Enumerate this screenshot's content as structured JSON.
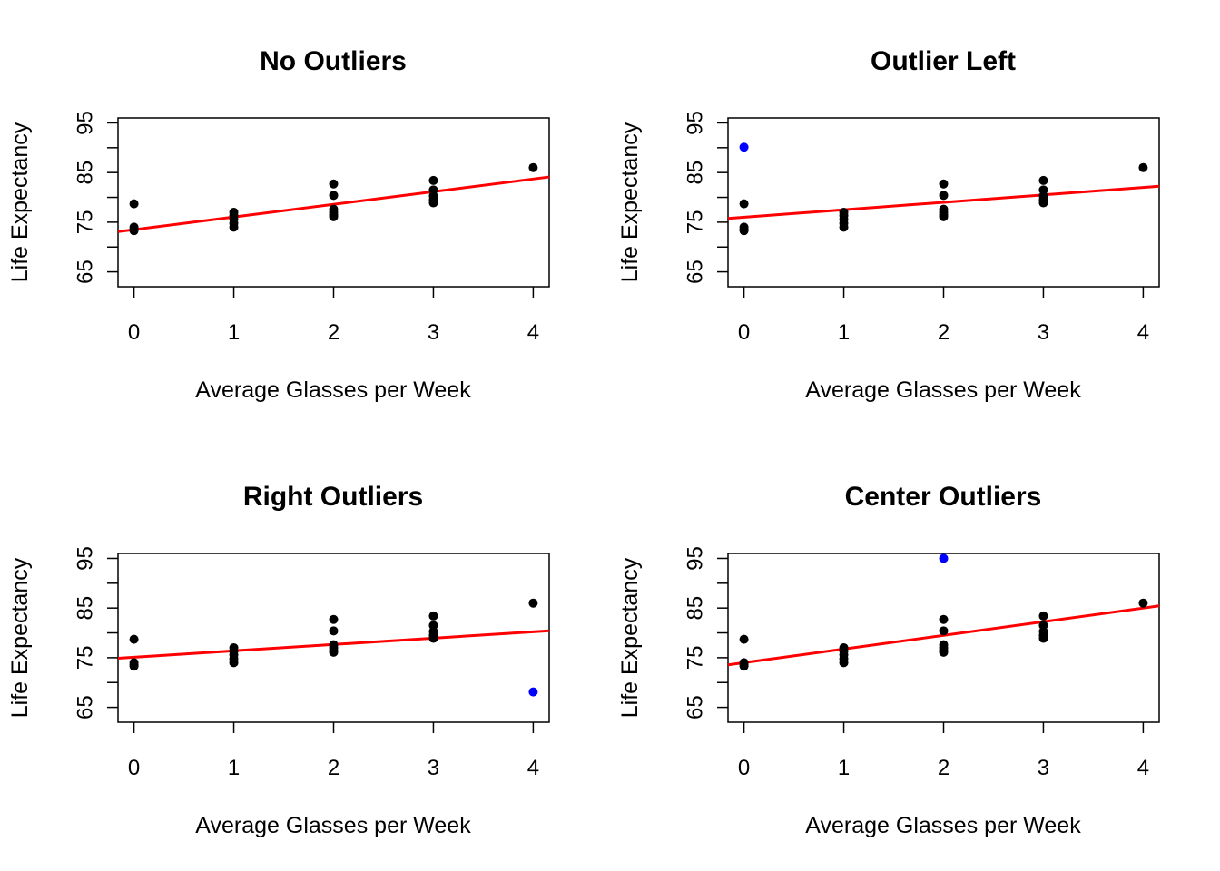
{
  "figure": {
    "background": "#ffffff",
    "line_color": "#ff0000",
    "point_color": "#000000",
    "outlier_color": "#0000ff"
  },
  "chart_data": [
    {
      "type": "scatter",
      "title": "No Outliers",
      "xlabel": "Average Glasses per Week",
      "ylabel": "Life Expectancy",
      "xlim": [
        -0.16,
        4.16
      ],
      "ylim": [
        62,
        96
      ],
      "xticks": [
        0,
        1,
        2,
        3,
        4
      ],
      "yticks": [
        65,
        75,
        85,
        95
      ],
      "points": [
        {
          "x": 0,
          "y": 78.7
        },
        {
          "x": 0,
          "y": 74.0
        },
        {
          "x": 0,
          "y": 73.6
        },
        {
          "x": 0,
          "y": 73.3
        },
        {
          "x": 1,
          "y": 77.0
        },
        {
          "x": 1,
          "y": 76.3
        },
        {
          "x": 1,
          "y": 75.6
        },
        {
          "x": 1,
          "y": 74.8
        },
        {
          "x": 1,
          "y": 74.0
        },
        {
          "x": 2,
          "y": 82.7
        },
        {
          "x": 2,
          "y": 80.4
        },
        {
          "x": 2,
          "y": 77.6
        },
        {
          "x": 2,
          "y": 77.0
        },
        {
          "x": 2,
          "y": 76.5
        },
        {
          "x": 2,
          "y": 76.1
        },
        {
          "x": 3,
          "y": 83.4
        },
        {
          "x": 3,
          "y": 81.5
        },
        {
          "x": 3,
          "y": 80.3
        },
        {
          "x": 3,
          "y": 79.5
        },
        {
          "x": 3,
          "y": 78.9
        },
        {
          "x": 4,
          "y": 86.0
        }
      ],
      "outliers": [],
      "fit_line": {
        "intercept": 73.5,
        "slope": 2.55
      }
    },
    {
      "type": "scatter",
      "title": "Outlier Left",
      "xlabel": "Average Glasses per Week",
      "ylabel": "Life Expectancy",
      "xlim": [
        -0.16,
        4.16
      ],
      "ylim": [
        62,
        96
      ],
      "xticks": [
        0,
        1,
        2,
        3,
        4
      ],
      "yticks": [
        65,
        75,
        85,
        95
      ],
      "points": [
        {
          "x": 0,
          "y": 78.7
        },
        {
          "x": 0,
          "y": 74.0
        },
        {
          "x": 0,
          "y": 73.6
        },
        {
          "x": 0,
          "y": 73.3
        },
        {
          "x": 1,
          "y": 77.0
        },
        {
          "x": 1,
          "y": 76.3
        },
        {
          "x": 1,
          "y": 75.6
        },
        {
          "x": 1,
          "y": 74.8
        },
        {
          "x": 1,
          "y": 74.0
        },
        {
          "x": 2,
          "y": 82.7
        },
        {
          "x": 2,
          "y": 80.4
        },
        {
          "x": 2,
          "y": 77.6
        },
        {
          "x": 2,
          "y": 77.0
        },
        {
          "x": 2,
          "y": 76.5
        },
        {
          "x": 2,
          "y": 76.1
        },
        {
          "x": 3,
          "y": 83.4
        },
        {
          "x": 3,
          "y": 81.5
        },
        {
          "x": 3,
          "y": 80.3
        },
        {
          "x": 3,
          "y": 79.5
        },
        {
          "x": 3,
          "y": 78.9
        },
        {
          "x": 4,
          "y": 86.0
        }
      ],
      "outliers": [
        {
          "x": 0,
          "y": 90.1
        }
      ],
      "fit_line": {
        "intercept": 76.0,
        "slope": 1.5
      }
    },
    {
      "type": "scatter",
      "title": "Right Outliers",
      "xlabel": "Average Glasses per Week",
      "ylabel": "Life Expectancy",
      "xlim": [
        -0.16,
        4.16
      ],
      "ylim": [
        62,
        96
      ],
      "xticks": [
        0,
        1,
        2,
        3,
        4
      ],
      "yticks": [
        65,
        75,
        85,
        95
      ],
      "points": [
        {
          "x": 0,
          "y": 78.7
        },
        {
          "x": 0,
          "y": 74.0
        },
        {
          "x": 0,
          "y": 73.6
        },
        {
          "x": 0,
          "y": 73.3
        },
        {
          "x": 1,
          "y": 77.0
        },
        {
          "x": 1,
          "y": 76.3
        },
        {
          "x": 1,
          "y": 75.6
        },
        {
          "x": 1,
          "y": 74.8
        },
        {
          "x": 1,
          "y": 74.0
        },
        {
          "x": 2,
          "y": 82.7
        },
        {
          "x": 2,
          "y": 80.4
        },
        {
          "x": 2,
          "y": 77.6
        },
        {
          "x": 2,
          "y": 77.0
        },
        {
          "x": 2,
          "y": 76.5
        },
        {
          "x": 2,
          "y": 76.1
        },
        {
          "x": 3,
          "y": 83.4
        },
        {
          "x": 3,
          "y": 81.5
        },
        {
          "x": 3,
          "y": 80.3
        },
        {
          "x": 3,
          "y": 79.5
        },
        {
          "x": 3,
          "y": 78.9
        },
        {
          "x": 4,
          "y": 86.0
        }
      ],
      "outliers": [
        {
          "x": 4,
          "y": 68.1
        }
      ],
      "fit_line": {
        "intercept": 75.1,
        "slope": 1.28
      }
    },
    {
      "type": "scatter",
      "title": "Center Outliers",
      "xlabel": "Average Glasses per Week",
      "ylabel": "Life Expectancy",
      "xlim": [
        -0.16,
        4.16
      ],
      "ylim": [
        62,
        96
      ],
      "xticks": [
        0,
        1,
        2,
        3,
        4
      ],
      "yticks": [
        65,
        75,
        85,
        95
      ],
      "points": [
        {
          "x": 0,
          "y": 78.7
        },
        {
          "x": 0,
          "y": 74.0
        },
        {
          "x": 0,
          "y": 73.6
        },
        {
          "x": 0,
          "y": 73.3
        },
        {
          "x": 1,
          "y": 77.0
        },
        {
          "x": 1,
          "y": 76.3
        },
        {
          "x": 1,
          "y": 75.6
        },
        {
          "x": 1,
          "y": 74.8
        },
        {
          "x": 1,
          "y": 74.0
        },
        {
          "x": 2,
          "y": 82.7
        },
        {
          "x": 2,
          "y": 80.4
        },
        {
          "x": 2,
          "y": 77.6
        },
        {
          "x": 2,
          "y": 77.0
        },
        {
          "x": 2,
          "y": 76.5
        },
        {
          "x": 2,
          "y": 76.1
        },
        {
          "x": 3,
          "y": 83.4
        },
        {
          "x": 3,
          "y": 81.5
        },
        {
          "x": 3,
          "y": 80.3
        },
        {
          "x": 3,
          "y": 79.5
        },
        {
          "x": 3,
          "y": 78.9
        },
        {
          "x": 4,
          "y": 86.0
        }
      ],
      "outliers": [
        {
          "x": 2,
          "y": 95.0
        }
      ],
      "fit_line": {
        "intercept": 74.0,
        "slope": 2.75
      }
    }
  ]
}
